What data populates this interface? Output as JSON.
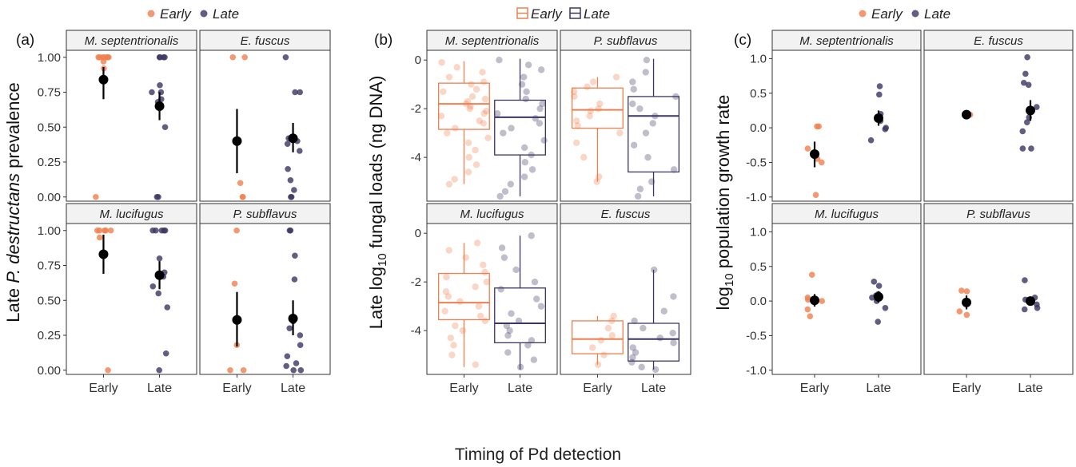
{
  "colors": {
    "early": "#F07F4F",
    "late": "#3D3561",
    "mean": "#000000",
    "strip": "#F2F2F2",
    "border": "#333333"
  },
  "legend": {
    "early": "Early",
    "late": "Late"
  },
  "shared_xlabel": "Timing of Pd detection",
  "chart_data": [
    {
      "type": "scatter",
      "panel_label": "(a)",
      "ylabel": {
        "pre": "Late ",
        "italic": "P. destructans",
        "post": " prevalence"
      },
      "ylim": [
        -0.03,
        1.05
      ],
      "yticks": [
        0.0,
        0.25,
        0.5,
        0.75,
        1.0
      ],
      "ytick_labels": [
        "0.00",
        "0.25",
        "0.50",
        "0.75",
        "1.00"
      ],
      "categories": [
        "Early",
        "Late"
      ],
      "facets": [
        {
          "title": "M. septentrionalis",
          "early": [
            1,
            1,
            1,
            1,
            1,
            1,
            1,
            0.97,
            0.92,
            0.85,
            0.0
          ],
          "late": [
            1,
            1,
            1,
            1,
            0.8,
            0.75,
            0.75,
            0.7,
            0.68,
            0.5,
            0.0,
            0.0
          ],
          "mean_early": {
            "y": 0.84,
            "lo": 0.7,
            "hi": 0.93
          },
          "mean_late": {
            "y": 0.65,
            "lo": 0.55,
            "hi": 0.75
          }
        },
        {
          "title": "E. fuscus",
          "early": [
            1,
            1,
            0.1,
            0.0,
            0.0
          ],
          "late": [
            1,
            0.75,
            0.75,
            0.42,
            0.4,
            0.38,
            0.33,
            0.2,
            0.12,
            0.05,
            0.0,
            0.0
          ],
          "mean_early": {
            "y": 0.4,
            "lo": 0.17,
            "hi": 0.63
          },
          "mean_late": {
            "y": 0.42,
            "lo": 0.32,
            "hi": 0.53
          }
        },
        {
          "title": "M. lucifugus",
          "early": [
            1,
            1,
            1,
            1,
            1,
            0.95,
            0.0
          ],
          "late": [
            1,
            1,
            1,
            1,
            1,
            0.8,
            0.7,
            0.67,
            0.6,
            0.55,
            0.45,
            0.12,
            0.0
          ],
          "mean_early": {
            "y": 0.83,
            "lo": 0.69,
            "hi": 0.97
          },
          "mean_late": {
            "y": 0.68,
            "lo": 0.58,
            "hi": 0.78
          }
        },
        {
          "title": "P. subflavus",
          "early": [
            1,
            0.62,
            0.18,
            0.0,
            0.0
          ],
          "late": [
            1,
            1,
            0.82,
            0.65,
            0.35,
            0.3,
            0.25,
            0.18,
            0.1,
            0.05,
            0.03,
            0.0,
            0.0
          ],
          "mean_early": {
            "y": 0.36,
            "lo": 0.17,
            "hi": 0.56
          },
          "mean_late": {
            "y": 0.37,
            "lo": 0.25,
            "hi": 0.5
          }
        }
      ]
    },
    {
      "type": "box",
      "panel_label": "(b)",
      "ylabel": {
        "pre": "Late log",
        "sub": "10",
        "post": " fungal loads (ng DNA)"
      },
      "ylim": [
        -5.8,
        0.4
      ],
      "yticks": [
        -4,
        -2,
        0
      ],
      "ytick_labels": [
        "-4",
        "-2",
        "0"
      ],
      "categories": [
        "Early",
        "Late"
      ],
      "facets": [
        {
          "title": "M. septentrionalis",
          "early": {
            "q1": -2.85,
            "median": -1.8,
            "q3": -0.95,
            "min": -5.1,
            "max": -0.05
          },
          "late": {
            "q1": -3.9,
            "median": -2.35,
            "q3": -1.65,
            "min": -5.6,
            "max": 0.05
          },
          "pts_early": [
            -0.1,
            -0.3,
            -0.5,
            -0.7,
            -0.9,
            -1.0,
            -1.2,
            -1.3,
            -1.5,
            -1.6,
            -1.7,
            -1.8,
            -1.9,
            -2.0,
            -2.1,
            -2.2,
            -2.3,
            -2.5,
            -2.6,
            -2.8,
            -3.0,
            -3.2,
            -3.4,
            -3.7,
            -4.0,
            -4.3,
            -4.6,
            -4.9,
            -5.1
          ],
          "pts_late": [
            0.0,
            -0.2,
            -0.4,
            -0.7,
            -1.0,
            -1.3,
            -1.6,
            -1.8,
            -2.0,
            -2.2,
            -2.4,
            -2.6,
            -2.8,
            -3.0,
            -3.3,
            -3.6,
            -3.9,
            -4.2,
            -4.5,
            -4.8,
            -5.1,
            -5.4,
            -5.6
          ]
        },
        {
          "title": "P. subflavus",
          "early": {
            "q1": -2.8,
            "median": -2.05,
            "q3": -1.15,
            "min": -5.0,
            "max": -0.7
          },
          "late": {
            "q1": -4.6,
            "median": -2.3,
            "q3": -1.5,
            "min": -5.6,
            "max": 0.05
          },
          "pts_early": [
            -0.7,
            -0.9,
            -1.1,
            -1.3,
            -1.5,
            -1.8,
            -2.0,
            -2.1,
            -2.3,
            -2.5,
            -2.7,
            -3.0,
            -3.4,
            -4.0,
            -4.8,
            -5.0
          ],
          "pts_late": [
            0.0,
            -0.5,
            -0.9,
            -1.2,
            -1.5,
            -1.8,
            -2.0,
            -2.3,
            -2.6,
            -3.0,
            -3.5,
            -4.0,
            -4.5,
            -5.0,
            -5.3,
            -5.6
          ]
        },
        {
          "title": "M. lucifugus",
          "early": {
            "q1": -3.55,
            "median": -2.85,
            "q3": -1.65,
            "min": -5.5,
            "max": -0.4
          },
          "late": {
            "q1": -4.5,
            "median": -3.7,
            "q3": -2.25,
            "min": -5.6,
            "max": -0.1
          },
          "pts_early": [
            -0.4,
            -0.7,
            -1.0,
            -1.3,
            -1.6,
            -1.8,
            -2.0,
            -2.2,
            -2.4,
            -2.6,
            -2.8,
            -3.0,
            -3.2,
            -3.4,
            -3.6,
            -3.8,
            -4.0,
            -4.3,
            -4.6,
            -5.0,
            -5.4
          ],
          "pts_late": [
            -0.1,
            -0.6,
            -1.0,
            -1.5,
            -2.0,
            -2.3,
            -2.7,
            -3.0,
            -3.3,
            -3.6,
            -3.8,
            -4.0,
            -4.2,
            -4.4,
            -4.6,
            -4.9,
            -5.2,
            -5.5
          ]
        },
        {
          "title": "E. fuscus",
          "early": {
            "q1": -4.95,
            "median": -4.35,
            "q3": -3.6,
            "min": -5.4,
            "max": -3.4
          },
          "late": {
            "q1": -5.25,
            "median": -4.35,
            "q3": -3.7,
            "min": -5.6,
            "max": -1.5
          },
          "pts_early": [
            -3.4,
            -3.6,
            -3.9,
            -4.2,
            -4.4,
            -4.7,
            -5.0,
            -5.4
          ],
          "pts_late": [
            -1.5,
            -2.6,
            -3.2,
            -3.6,
            -3.9,
            -4.1,
            -4.3,
            -4.5,
            -4.7,
            -4.9,
            -5.1,
            -5.3,
            -5.5,
            -5.6
          ]
        }
      ]
    },
    {
      "type": "scatter",
      "panel_label": "(c)",
      "ylabel": {
        "pre": "log",
        "sub": "10",
        "post": " population growth rate"
      },
      "ylim": [
        -1.06,
        1.12
      ],
      "yticks": [
        -1.0,
        -0.5,
        0.0,
        0.5,
        1.0
      ],
      "ytick_labels": [
        "-1.0",
        "-0.5",
        "0.0",
        "0.5",
        "1.0"
      ],
      "categories": [
        "Early",
        "Late"
      ],
      "facets": [
        {
          "title": "M. septentrionalis",
          "early": [
            0.02,
            0.02,
            -0.3,
            -0.45,
            -0.5,
            -0.97
          ],
          "late": [
            0.6,
            0.48,
            0.2,
            0.1,
            0.0,
            -0.02,
            -0.18
          ],
          "mean_early": {
            "y": -0.38,
            "lo": -0.57,
            "hi": -0.2
          },
          "mean_late": {
            "y": 0.14,
            "lo": 0.03,
            "hi": 0.25
          }
        },
        {
          "title": "E. fuscus",
          "early": [
            0.2,
            0.19,
            0.18
          ],
          "late": [
            1.02,
            0.78,
            0.65,
            0.62,
            0.3,
            0.15,
            0.08,
            -0.05,
            -0.3,
            -0.3
          ],
          "mean_early": {
            "y": 0.19,
            "lo": 0.17,
            "hi": 0.21
          },
          "mean_late": {
            "y": 0.25,
            "lo": 0.1,
            "hi": 0.4
          }
        },
        {
          "title": "M. lucifugus",
          "early": [
            0.38,
            0.05,
            0.02,
            0.0,
            -0.12,
            -0.22
          ],
          "late": [
            0.28,
            0.22,
            0.1,
            0.08,
            0.05,
            0.0,
            -0.1,
            -0.3
          ],
          "mean_early": {
            "y": 0.01,
            "lo": -0.08,
            "hi": 0.1
          },
          "mean_late": {
            "y": 0.06,
            "lo": -0.02,
            "hi": 0.14
          }
        },
        {
          "title": "P. subflavus",
          "early": [
            0.15,
            0.14,
            -0.15,
            -0.2
          ],
          "late": [
            0.3,
            0.05,
            0.02,
            0.0,
            -0.05,
            -0.1,
            -0.12
          ],
          "mean_early": {
            "y": -0.02,
            "lo": -0.12,
            "hi": 0.08
          },
          "mean_late": {
            "y": 0.0,
            "lo": -0.06,
            "hi": 0.06
          }
        }
      ]
    }
  ]
}
